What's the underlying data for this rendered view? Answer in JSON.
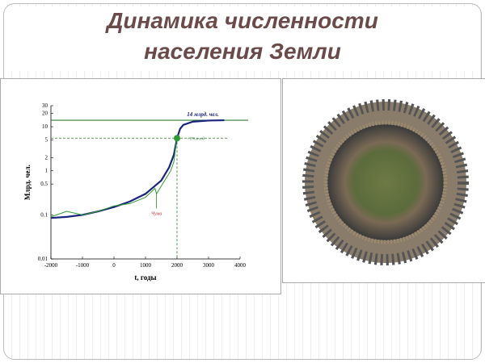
{
  "title_lines": [
    "Динамика численности",
    "населения Земли"
  ],
  "chart_data": {
    "type": "line",
    "ylabel": "Млрд. чел.",
    "xlabel": "t, годы",
    "xlim": [
      -2000,
      4000
    ],
    "xticks": [
      -2000,
      -1000,
      0,
      1000,
      2000,
      3000,
      4000
    ],
    "ylim": [
      0.01,
      30
    ],
    "yticks": [
      0.01,
      0.1,
      0.5,
      1,
      2,
      5,
      10,
      20,
      30
    ],
    "log_y": true,
    "series": [
      {
        "color": "#1a237e",
        "x": [
          -2000,
          -1500,
          -1000,
          -500,
          0,
          500,
          1000,
          1500,
          1750,
          1900,
          2000,
          2100,
          2200,
          2500,
          3000,
          3500
        ],
        "values": [
          0.085,
          0.09,
          0.1,
          0.12,
          0.15,
          0.2,
          0.3,
          0.6,
          1.2,
          2.3,
          5.5,
          9,
          11,
          13,
          13.8,
          14
        ]
      },
      {
        "color": "#2e9b2e",
        "x": [
          -2000,
          -1500,
          -1000,
          -500,
          0,
          500,
          1000,
          1300,
          1350,
          1500,
          1800,
          1900,
          2000
        ],
        "values": [
          0.09,
          0.12,
          0.1,
          0.12,
          0.16,
          0.18,
          0.25,
          0.4,
          0.3,
          0.45,
          1,
          1.6,
          6
        ]
      }
    ],
    "reference_line": {
      "value": 14,
      "color": "#2e7d32",
      "label": "14 млрд. чел."
    },
    "marker": {
      "x": 2000,
      "y": 5.5,
      "color": "#2e9b2e",
      "label": "~ 3% в год"
    },
    "event_label": "Чума"
  }
}
